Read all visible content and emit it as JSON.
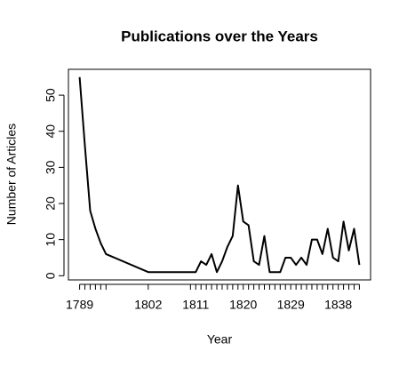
{
  "chart_data": {
    "type": "line",
    "title": "Publications over the Years",
    "x_label": "Year",
    "y_label": "Number of Articles",
    "x": [
      1789,
      1790,
      1791,
      1792,
      1793,
      1794,
      1802,
      1810,
      1811,
      1812,
      1813,
      1814,
      1815,
      1816,
      1817,
      1818,
      1819,
      1820,
      1821,
      1822,
      1823,
      1824,
      1825,
      1826,
      1827,
      1828,
      1829,
      1830,
      1831,
      1832,
      1833,
      1834,
      1835,
      1836,
      1837,
      1838,
      1839,
      1840,
      1841,
      1842
    ],
    "series": [
      {
        "name": "Publications",
        "color": "#000000",
        "values": [
          55,
          36,
          18,
          13,
          9,
          6,
          1,
          1,
          1,
          4,
          3,
          6,
          1,
          4,
          8,
          11,
          25,
          15,
          14,
          4,
          3,
          11,
          1,
          1,
          1,
          5,
          5,
          3,
          5,
          3,
          10,
          10,
          6,
          13,
          5,
          4,
          15,
          7,
          13,
          3
        ]
      }
    ],
    "xlim": [
      1786.88,
      1844.12
    ],
    "xticks": [
      1789,
      1802,
      1811,
      1820,
      1829,
      1838
    ],
    "ylim": [
      -1.16,
      57.16
    ],
    "yticks": [
      0,
      10,
      20,
      30,
      40,
      50
    ]
  }
}
